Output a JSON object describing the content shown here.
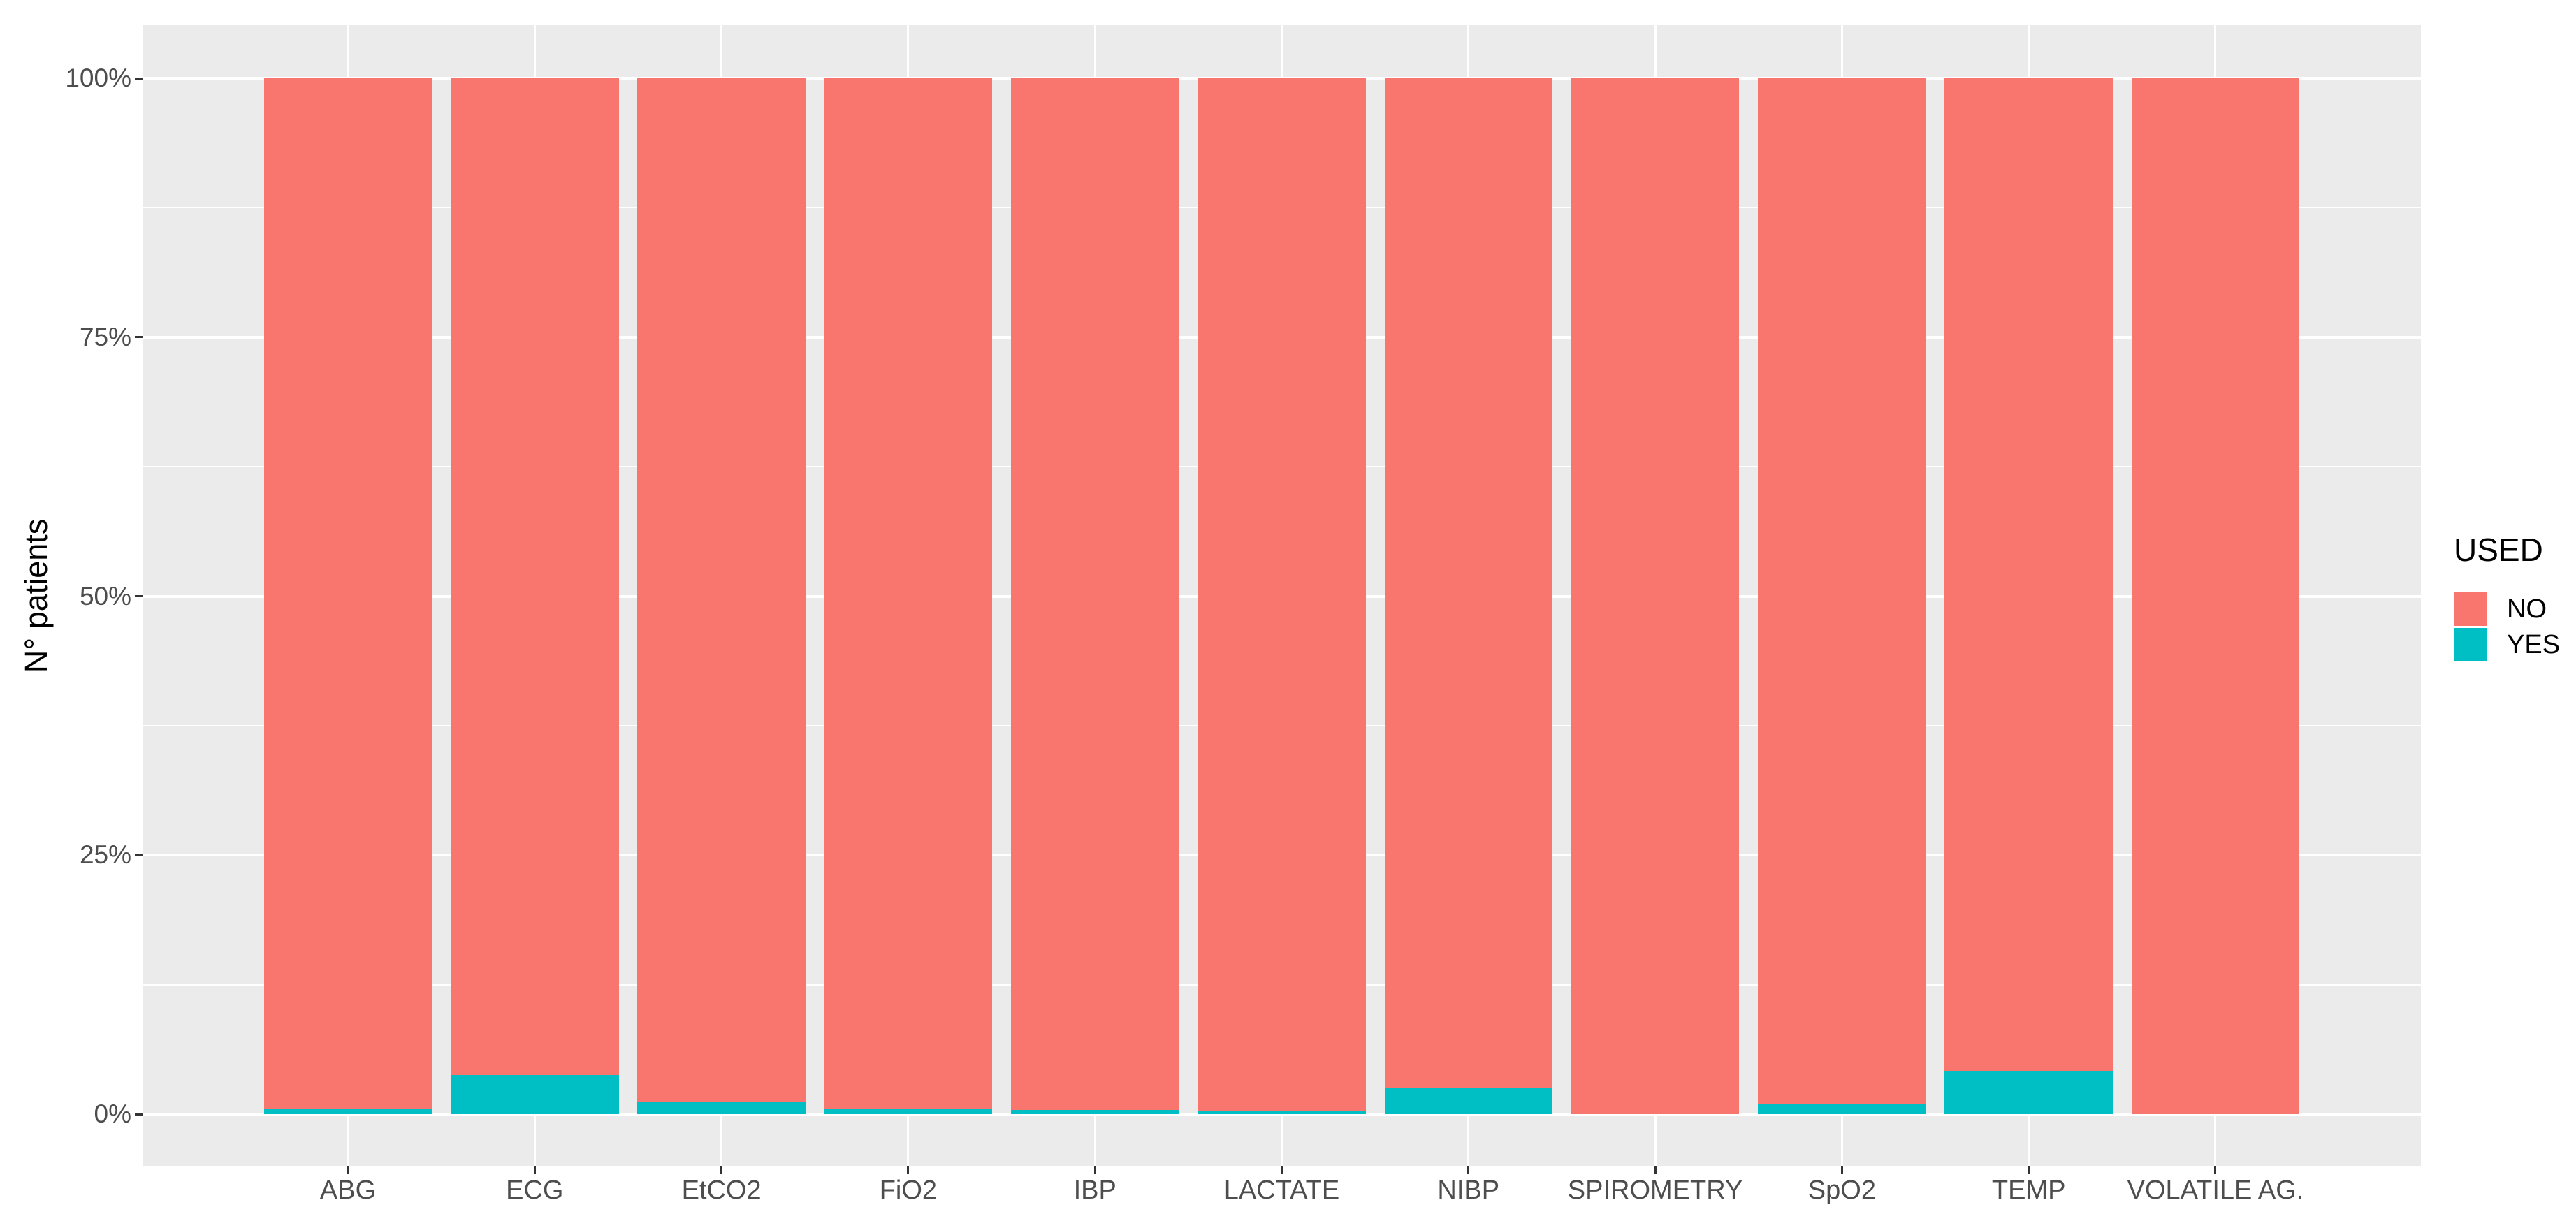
{
  "chart_data": {
    "type": "bar",
    "stacked": true,
    "percent_scale": true,
    "title": "",
    "xlabel": "",
    "ylabel": "N° patients",
    "categories": [
      "ABG",
      "ECG",
      "EtCO2",
      "FiO2",
      "IBP",
      "LACTATE",
      "NIBP",
      "SPIROMETRY",
      "SpO2",
      "TEMP",
      "VOLATILE AG."
    ],
    "series": [
      {
        "name": "NO",
        "color": "#F8766D",
        "values": [
          99.5,
          96.2,
          98.8,
          99.5,
          99.6,
          99.7,
          97.5,
          100,
          99.0,
          95.8,
          100
        ]
      },
      {
        "name": "YES",
        "color": "#00BFC4",
        "values": [
          0.5,
          3.8,
          1.2,
          0.5,
          0.4,
          0.3,
          2.5,
          0,
          1.0,
          4.2,
          0
        ]
      }
    ],
    "stack_order_bottom_to_top": [
      "YES",
      "NO"
    ],
    "y_ticks": [
      {
        "label": "0%",
        "value": 0
      },
      {
        "label": "25%",
        "value": 25
      },
      {
        "label": "50%",
        "value": 50
      },
      {
        "label": "75%",
        "value": 75
      },
      {
        "label": "100%",
        "value": 100
      }
    ],
    "y_minor_ticks": [
      12.5,
      37.5,
      62.5,
      87.5
    ],
    "ylim": [
      0,
      100
    ],
    "grid": true,
    "legend": {
      "title": "USED",
      "position": "right",
      "entries": [
        {
          "label": "NO",
          "color": "#F8766D"
        },
        {
          "label": "YES",
          "color": "#00BFC4"
        }
      ]
    },
    "colors": {
      "panel_background": "#EBEBEB",
      "gridline": "#FFFFFF",
      "tick_mark": "#333333",
      "axis_text": "#4D4D4D",
      "title_text": "#000000",
      "no_fill": "#F8766D",
      "yes_fill": "#00BFC4"
    }
  }
}
